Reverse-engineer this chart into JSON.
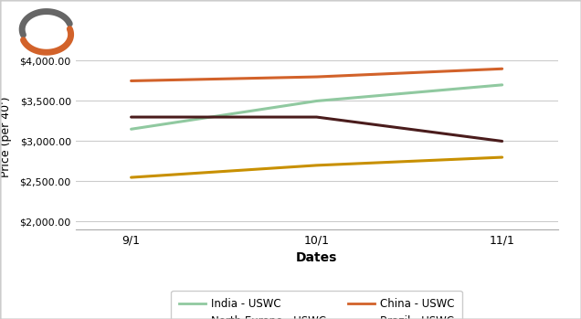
{
  "x_labels": [
    "9/1",
    "10/1",
    "11/1"
  ],
  "x_positions": [
    0,
    1,
    2
  ],
  "series": [
    {
      "label": "India - USWC",
      "color": "#90C9A0",
      "values": [
        3150,
        3500,
        3700
      ]
    },
    {
      "label": "North Europe - USWC",
      "color": "#4A1C1C",
      "values": [
        3300,
        3300,
        3000
      ]
    },
    {
      "label": "China - USWC",
      "color": "#D2622A",
      "values": [
        3750,
        3800,
        3900
      ]
    },
    {
      "label": "Brazil - USWC",
      "color": "#C89000",
      "values": [
        2550,
        2700,
        2800
      ]
    }
  ],
  "xlabel": "Dates",
  "ylabel": "Price (per 40')",
  "ylim": [
    1900,
    4200
  ],
  "yticks": [
    2000,
    2500,
    3000,
    3500,
    4000
  ],
  "background_color": "#ffffff",
  "grid_color": "#cccccc",
  "linewidth": 2.2,
  "legend_ncol": 2,
  "logo_orange": "#D2622A",
  "logo_gray": "#666666",
  "border_color": "#cccccc"
}
